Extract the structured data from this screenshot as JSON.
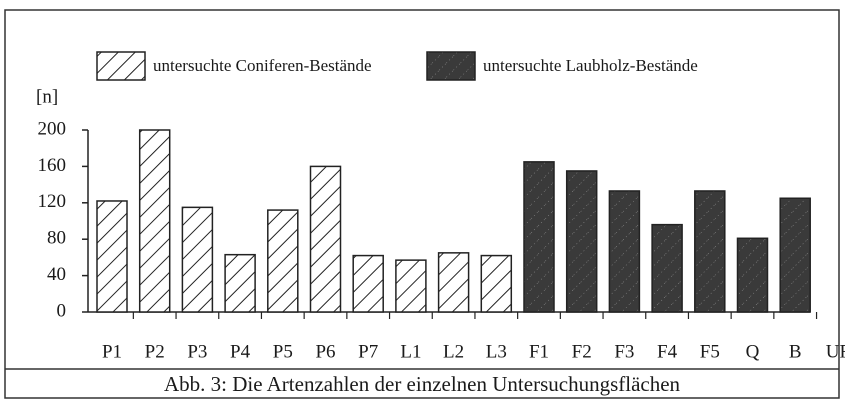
{
  "chart_data": {
    "type": "bar",
    "caption": "Abb. 3: Die Artenzahlen der einzelnen Untersuchungsflächen",
    "y_label": "[n]",
    "categories": [
      "P1",
      "P2",
      "P3",
      "P4",
      "P5",
      "P6",
      "P7",
      "L1",
      "L2",
      "L3",
      "F1",
      "F2",
      "F3",
      "F4",
      "F5",
      "Q",
      "B",
      "UF"
    ],
    "series": [
      {
        "name": "untersuchte Coniferen-Bestände",
        "color": "#ffffff",
        "values": [
          122,
          200,
          115,
          63,
          112,
          160,
          62,
          57,
          65,
          62,
          null,
          null,
          null,
          null,
          null,
          null,
          null,
          null
        ]
      },
      {
        "name": "untersuchte Laubholz-Bestände",
        "color": "#3a3a3a",
        "values": [
          null,
          null,
          null,
          null,
          null,
          null,
          null,
          null,
          null,
          null,
          165,
          155,
          133,
          96,
          133,
          81,
          125,
          null
        ]
      }
    ],
    "ylim": [
      0,
      200
    ],
    "yticks": [
      0,
      40,
      80,
      120,
      160,
      200
    ]
  }
}
